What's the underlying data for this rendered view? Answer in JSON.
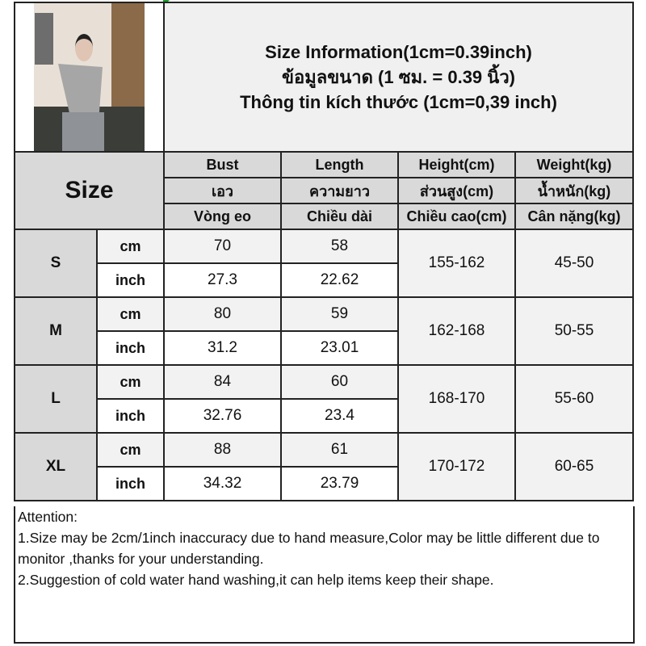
{
  "title_lines": [
    "Size Information(1cm=0.39inch)",
    "ข้อมูลขนาด (1 ซม. = 0.39 นิ้ว)",
    "Thông tin kích thước (1cm=0,39 inch)"
  ],
  "size_header": "Size",
  "columns": [
    {
      "en": "Bust",
      "th": "เอว",
      "vi": "Vòng eo"
    },
    {
      "en": "Length",
      "th": "ความยาว",
      "vi": "Chiều dài"
    },
    {
      "en": "Height(cm)",
      "th": "ส่วนสูง(cm)",
      "vi": "Chiều cao(cm)"
    },
    {
      "en": "Weight(kg)",
      "th": "น้ำหนัก(kg)",
      "vi": "Cân nặng(kg)"
    }
  ],
  "units": {
    "cm": "cm",
    "inch": "inch"
  },
  "rows": [
    {
      "size": "S",
      "cm": [
        "70",
        "58"
      ],
      "inch": [
        "27.3",
        "22.62"
      ],
      "height": "155-162",
      "weight": "45-50"
    },
    {
      "size": "M",
      "cm": [
        "80",
        "59"
      ],
      "inch": [
        "31.2",
        "23.01"
      ],
      "height": "162-168",
      "weight": "50-55"
    },
    {
      "size": "L",
      "cm": [
        "84",
        "60"
      ],
      "inch": [
        "32.76",
        "23.4"
      ],
      "height": "168-170",
      "weight": "55-60"
    },
    {
      "size": "XL",
      "cm": [
        "88",
        "61"
      ],
      "inch": [
        "34.32",
        "23.79"
      ],
      "height": "170-172",
      "weight": "60-65"
    }
  ],
  "attention": {
    "heading": "Attention:",
    "notes": [
      "1.Size may be 2cm/1inch inaccuracy due to hand measure,Color may be little different due to monitor ,thanks for your understanding.",
      "2.Suggestion of cold water hand washing,it can help items keep their shape."
    ]
  }
}
